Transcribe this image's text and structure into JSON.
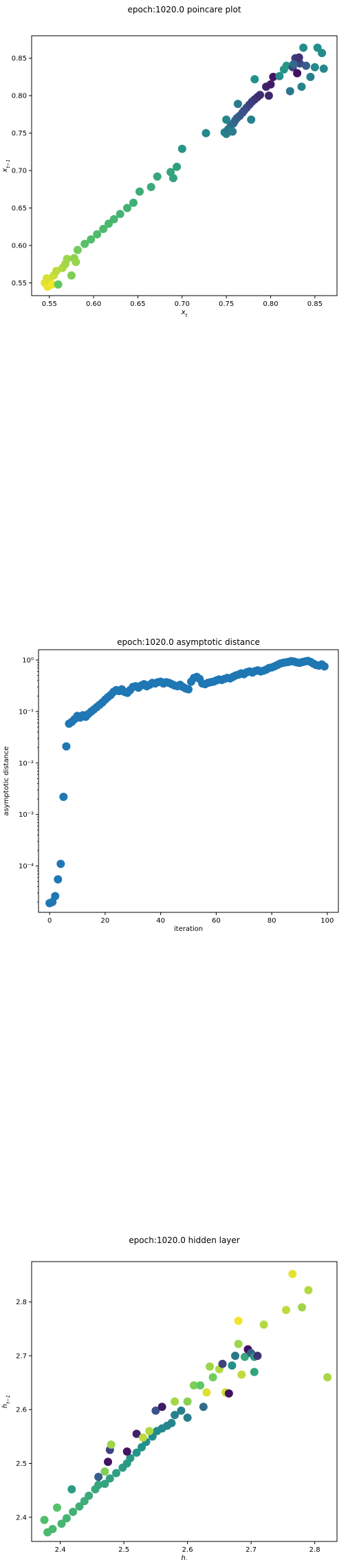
{
  "chart_data": [
    {
      "type": "scatter",
      "title": "epoch:1020.0 poincare plot",
      "xlabel": "x_t",
      "ylabel": "x_{t-1}",
      "xlim": [
        0.53,
        0.875
      ],
      "ylim": [
        0.533,
        0.88
      ],
      "xticks": [
        0.55,
        0.6,
        0.65,
        0.7,
        0.75,
        0.8,
        0.85
      ],
      "xtick_labels": [
        "0.55",
        "0.60",
        "0.65",
        "0.70",
        "0.75",
        "0.80",
        "0.85"
      ],
      "yticks": [
        0.55,
        0.6,
        0.65,
        0.7,
        0.75,
        0.8,
        0.85
      ],
      "ytick_labels": [
        "0.55",
        "0.60",
        "0.65",
        "0.70",
        "0.75",
        "0.80",
        "0.85"
      ],
      "grid": false,
      "colormap": [
        "#440154",
        "#3b528b",
        "#21918c",
        "#5ec962",
        "#fde725"
      ],
      "points": [
        [
          0.545,
          0.55,
          0.96
        ],
        [
          0.548,
          0.545,
          0.97
        ],
        [
          0.55,
          0.553,
          0.95
        ],
        [
          0.553,
          0.548,
          0.98
        ],
        [
          0.547,
          0.556,
          0.94
        ],
        [
          0.555,
          0.56,
          0.92
        ],
        [
          0.558,
          0.566,
          0.9
        ],
        [
          0.56,
          0.548,
          0.75
        ],
        [
          0.565,
          0.57,
          0.88
        ],
        [
          0.568,
          0.575,
          0.86
        ],
        [
          0.57,
          0.582,
          0.85
        ],
        [
          0.575,
          0.56,
          0.8
        ],
        [
          0.578,
          0.583,
          0.82
        ],
        [
          0.58,
          0.578,
          0.84
        ],
        [
          0.582,
          0.594,
          0.78
        ],
        [
          0.59,
          0.602,
          0.72
        ],
        [
          0.597,
          0.608,
          0.7
        ],
        [
          0.604,
          0.615,
          0.69
        ],
        [
          0.611,
          0.622,
          0.68
        ],
        [
          0.617,
          0.629,
          0.67
        ],
        [
          0.623,
          0.635,
          0.66
        ],
        [
          0.63,
          0.642,
          0.65
        ],
        [
          0.638,
          0.65,
          0.64
        ],
        [
          0.645,
          0.657,
          0.63
        ],
        [
          0.652,
          0.672,
          0.62
        ],
        [
          0.665,
          0.678,
          0.61
        ],
        [
          0.672,
          0.692,
          0.6
        ],
        [
          0.687,
          0.698,
          0.58
        ],
        [
          0.69,
          0.69,
          0.57
        ],
        [
          0.694,
          0.705,
          0.56
        ],
        [
          0.7,
          0.729,
          0.52
        ],
        [
          0.727,
          0.75,
          0.47
        ],
        [
          0.748,
          0.751,
          0.45
        ],
        [
          0.75,
          0.749,
          0.43
        ],
        [
          0.752,
          0.755,
          0.4
        ],
        [
          0.755,
          0.76,
          0.38
        ],
        [
          0.758,
          0.763,
          0.36
        ],
        [
          0.76,
          0.767,
          0.33
        ],
        [
          0.762,
          0.77,
          0.31
        ],
        [
          0.765,
          0.773,
          0.29
        ],
        [
          0.768,
          0.777,
          0.27
        ],
        [
          0.77,
          0.78,
          0.25
        ],
        [
          0.773,
          0.784,
          0.23
        ],
        [
          0.776,
          0.788,
          0.21
        ],
        [
          0.779,
          0.792,
          0.19
        ],
        [
          0.782,
          0.795,
          0.17
        ],
        [
          0.785,
          0.798,
          0.15
        ],
        [
          0.788,
          0.801,
          0.13
        ],
        [
          0.75,
          0.768,
          0.46
        ],
        [
          0.757,
          0.752,
          0.42
        ],
        [
          0.763,
          0.789,
          0.41
        ],
        [
          0.778,
          0.768,
          0.44
        ],
        [
          0.782,
          0.822,
          0.5
        ],
        [
          0.795,
          0.812,
          0.1
        ],
        [
          0.8,
          0.815,
          0.08
        ],
        [
          0.803,
          0.825,
          0.06
        ],
        [
          0.798,
          0.8,
          0.12
        ],
        [
          0.81,
          0.826,
          0.48
        ],
        [
          0.815,
          0.835,
          0.52
        ],
        [
          0.818,
          0.84,
          0.53
        ],
        [
          0.822,
          0.806,
          0.4
        ],
        [
          0.825,
          0.838,
          0.2
        ],
        [
          0.828,
          0.85,
          0.18
        ],
        [
          0.83,
          0.83,
          0.05
        ],
        [
          0.833,
          0.843,
          0.22
        ],
        [
          0.835,
          0.812,
          0.45
        ],
        [
          0.837,
          0.864,
          0.49
        ],
        [
          0.84,
          0.84,
          0.3
        ],
        [
          0.845,
          0.825,
          0.42
        ],
        [
          0.85,
          0.838,
          0.47
        ],
        [
          0.853,
          0.864,
          0.5
        ],
        [
          0.858,
          0.857,
          0.48
        ],
        [
          0.86,
          0.836,
          0.46
        ],
        [
          0.832,
          0.851,
          0.15
        ],
        [
          0.826,
          0.842,
          0.35
        ]
      ]
    },
    {
      "type": "scatter",
      "title": "epoch:1020.0 asymptotic distance",
      "xlabel": "iteration",
      "ylabel": "asymptotic distance",
      "xlim": [
        -4,
        104
      ],
      "ylog": true,
      "ylim_log10": [
        -4.9,
        0.2
      ],
      "xticks": [
        0,
        20,
        40,
        60,
        80,
        100
      ],
      "xtick_labels": [
        "0",
        "20",
        "40",
        "60",
        "80",
        "100"
      ],
      "yticks_log10": [
        -4,
        -3,
        -2,
        -1,
        0
      ],
      "ytick_labels": [
        "10⁻⁴",
        "10⁻³",
        "10⁻²",
        "10⁻¹",
        "10⁰"
      ],
      "grid": false,
      "color": "#1f77b4",
      "x": [
        0,
        1,
        2,
        3,
        4,
        5,
        6,
        7,
        8,
        9,
        10,
        11,
        12,
        13,
        14,
        15,
        16,
        17,
        18,
        19,
        20,
        21,
        22,
        23,
        24,
        25,
        26,
        27,
        28,
        29,
        30,
        31,
        32,
        33,
        34,
        35,
        36,
        37,
        38,
        39,
        40,
        41,
        42,
        43,
        44,
        45,
        46,
        47,
        48,
        49,
        50,
        51,
        52,
        53,
        54,
        55,
        56,
        57,
        58,
        59,
        60,
        61,
        62,
        63,
        64,
        65,
        66,
        67,
        68,
        69,
        70,
        71,
        72,
        73,
        74,
        75,
        76,
        77,
        78,
        79,
        80,
        81,
        82,
        83,
        84,
        85,
        86,
        87,
        88,
        89,
        90,
        91,
        92,
        93,
        94,
        95,
        96,
        97,
        98,
        99
      ],
      "y": [
        1.9e-05,
        2e-05,
        2.6e-05,
        5.5e-05,
        0.00011,
        0.0022,
        0.021,
        0.058,
        0.063,
        0.071,
        0.082,
        0.076,
        0.085,
        0.079,
        0.09,
        0.1,
        0.11,
        0.122,
        0.135,
        0.15,
        0.17,
        0.19,
        0.21,
        0.24,
        0.26,
        0.25,
        0.27,
        0.24,
        0.23,
        0.26,
        0.3,
        0.31,
        0.29,
        0.32,
        0.34,
        0.31,
        0.33,
        0.36,
        0.35,
        0.37,
        0.38,
        0.35,
        0.37,
        0.36,
        0.34,
        0.32,
        0.31,
        0.33,
        0.3,
        0.28,
        0.27,
        0.38,
        0.45,
        0.47,
        0.43,
        0.35,
        0.34,
        0.36,
        0.37,
        0.38,
        0.4,
        0.42,
        0.41,
        0.43,
        0.45,
        0.44,
        0.47,
        0.5,
        0.52,
        0.55,
        0.53,
        0.58,
        0.6,
        0.57,
        0.61,
        0.63,
        0.6,
        0.62,
        0.65,
        0.7,
        0.72,
        0.75,
        0.8,
        0.85,
        0.88,
        0.9,
        0.92,
        0.95,
        0.93,
        0.9,
        0.88,
        0.91,
        0.94,
        0.96,
        0.92,
        0.85,
        0.8,
        0.78,
        0.82,
        0.75
      ]
    },
    {
      "type": "scatter",
      "title": "epoch:1020.0 hidden layer",
      "xlabel": "h_t",
      "ylabel": "h_{t-1}",
      "xlim": [
        2.355,
        2.835
      ],
      "ylim": [
        2.355,
        2.875
      ],
      "xticks": [
        2.4,
        2.5,
        2.6,
        2.7,
        2.8
      ],
      "xtick_labels": [
        "2.4",
        "2.5",
        "2.6",
        "2.7",
        "2.8"
      ],
      "yticks": [
        2.4,
        2.5,
        2.6,
        2.7,
        2.8
      ],
      "ytick_labels": [
        "2.4",
        "2.5",
        "2.6",
        "2.7",
        "2.8"
      ],
      "grid": false,
      "colormap": [
        "#440154",
        "#3b528b",
        "#21918c",
        "#5ec962",
        "#fde725"
      ],
      "points": [
        [
          2.375,
          2.395,
          0.7
        ],
        [
          2.38,
          2.372,
          0.68
        ],
        [
          2.388,
          2.378,
          0.67
        ],
        [
          2.395,
          2.418,
          0.72
        ],
        [
          2.402,
          2.388,
          0.66
        ],
        [
          2.41,
          2.398,
          0.65
        ],
        [
          2.418,
          2.452,
          0.55
        ],
        [
          2.42,
          2.41,
          0.64
        ],
        [
          2.43,
          2.42,
          0.63
        ],
        [
          2.438,
          2.43,
          0.62
        ],
        [
          2.445,
          2.44,
          0.61
        ],
        [
          2.455,
          2.452,
          0.6
        ],
        [
          2.46,
          2.46,
          0.59
        ],
        [
          2.47,
          2.462,
          0.58
        ],
        [
          2.478,
          2.472,
          0.57
        ],
        [
          2.488,
          2.482,
          0.56
        ],
        [
          2.498,
          2.492,
          0.55
        ],
        [
          2.505,
          2.5,
          0.54
        ],
        [
          2.51,
          2.51,
          0.53
        ],
        [
          2.52,
          2.52,
          0.52
        ],
        [
          2.528,
          2.53,
          0.51
        ],
        [
          2.535,
          2.54,
          0.5
        ],
        [
          2.545,
          2.55,
          0.49
        ],
        [
          2.552,
          2.56,
          0.48
        ],
        [
          2.56,
          2.565,
          0.47
        ],
        [
          2.568,
          2.57,
          0.46
        ],
        [
          2.575,
          2.575,
          0.45
        ],
        [
          2.58,
          2.59,
          0.44
        ],
        [
          2.59,
          2.598,
          0.43
        ],
        [
          2.6,
          2.585,
          0.42
        ],
        [
          2.46,
          2.475,
          0.3
        ],
        [
          2.47,
          2.485,
          0.8
        ],
        [
          2.475,
          2.503,
          0.05
        ],
        [
          2.478,
          2.525,
          0.2
        ],
        [
          2.48,
          2.535,
          0.85
        ],
        [
          2.505,
          2.522,
          0.06
        ],
        [
          2.52,
          2.555,
          0.1
        ],
        [
          2.53,
          2.548,
          0.9
        ],
        [
          2.54,
          2.56,
          0.88
        ],
        [
          2.55,
          2.598,
          0.25
        ],
        [
          2.56,
          2.605,
          0.08
        ],
        [
          2.58,
          2.615,
          0.86
        ],
        [
          2.6,
          2.615,
          0.82
        ],
        [
          2.61,
          2.645,
          0.8
        ],
        [
          2.62,
          2.645,
          0.75
        ],
        [
          2.625,
          2.605,
          0.35
        ],
        [
          2.63,
          2.632,
          0.95
        ],
        [
          2.635,
          2.68,
          0.85
        ],
        [
          2.64,
          2.66,
          0.78
        ],
        [
          2.65,
          2.675,
          0.88
        ],
        [
          2.655,
          2.685,
          0.2
        ],
        [
          2.66,
          2.632,
          0.92
        ],
        [
          2.665,
          2.63,
          0.05
        ],
        [
          2.67,
          2.682,
          0.5
        ],
        [
          2.675,
          2.7,
          0.4
        ],
        [
          2.68,
          2.722,
          0.85
        ],
        [
          2.685,
          2.665,
          0.9
        ],
        [
          2.69,
          2.698,
          0.6
        ],
        [
          2.695,
          2.712,
          0.05
        ],
        [
          2.7,
          2.705,
          0.3
        ],
        [
          2.705,
          2.698,
          0.55
        ],
        [
          2.71,
          2.7,
          0.15
        ],
        [
          2.72,
          2.758,
          0.88
        ],
        [
          2.68,
          2.765,
          0.98
        ],
        [
          2.755,
          2.785,
          0.9
        ],
        [
          2.765,
          2.852,
          0.96
        ],
        [
          2.78,
          2.79,
          0.85
        ],
        [
          2.79,
          2.822,
          0.88
        ],
        [
          2.82,
          2.66,
          0.87
        ],
        [
          2.705,
          2.67,
          0.58
        ]
      ]
    }
  ]
}
